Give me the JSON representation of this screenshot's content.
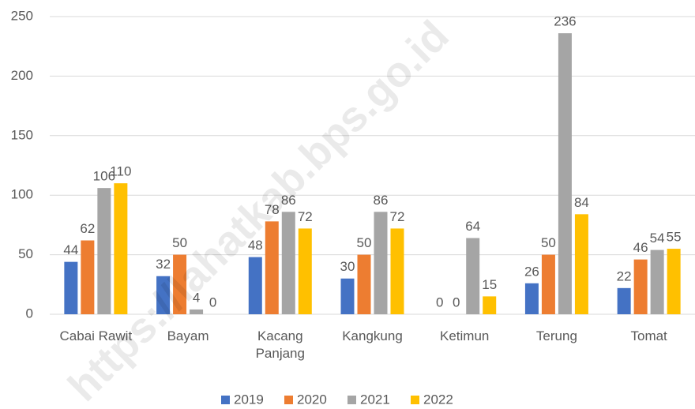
{
  "chart_data": {
    "type": "bar",
    "categories": [
      "Cabai Rawit",
      "Bayam",
      "Kacang Panjang",
      "Kangkung",
      "Ketimun",
      "Terung",
      "Tomat"
    ],
    "series": [
      {
        "name": "2019",
        "color": "#4472c4",
        "values": [
          44,
          32,
          48,
          30,
          0,
          26,
          22
        ]
      },
      {
        "name": "2020",
        "color": "#ed7d31",
        "values": [
          62,
          50,
          78,
          50,
          0,
          50,
          46
        ]
      },
      {
        "name": "2021",
        "color": "#a5a5a5",
        "values": [
          106,
          4,
          86,
          86,
          64,
          236,
          54
        ]
      },
      {
        "name": "2022",
        "color": "#ffc000",
        "values": [
          110,
          0,
          72,
          72,
          15,
          84,
          55
        ]
      }
    ],
    "ylim": [
      0,
      250
    ],
    "yticks": [
      0,
      50,
      100,
      150,
      200,
      250
    ],
    "grid": true,
    "legend": "bottom",
    "watermark": "https://lahatkab.bps.go.id"
  }
}
